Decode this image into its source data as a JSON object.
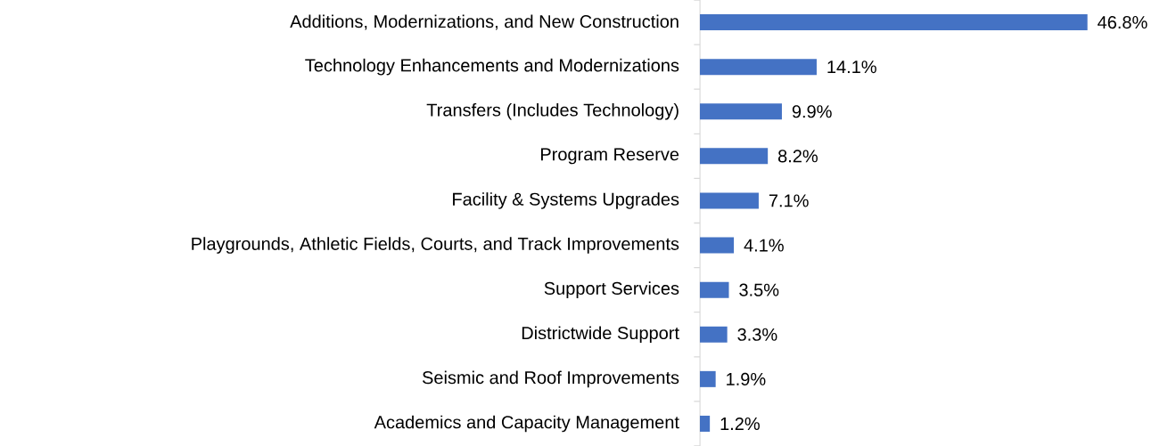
{
  "chart_data": {
    "type": "bar",
    "orientation": "horizontal",
    "color": "#4472c4",
    "tick_labels": "y",
    "categories": [
      "Additions, Modernizations, and New Construction",
      "Technology Enhancements and Modernizations",
      "Transfers (Includes Technology)",
      "Program Reserve",
      "Facility & Systems Upgrades",
      "Playgrounds, Athletic Fields, Courts, and Track Improvements",
      "Support Services",
      "Districtwide Support",
      "Seismic and Roof Improvements",
      "Academics and Capacity Management"
    ],
    "values": [
      46.8,
      14.1,
      9.9,
      8.2,
      7.1,
      4.1,
      3.5,
      3.3,
      1.9,
      1.2
    ],
    "value_labels": [
      "46.8%",
      "14.1%",
      "9.9%",
      "8.2%",
      "7.1%",
      "4.1%",
      "3.5%",
      "3.3%",
      "1.9%",
      "1.2%"
    ]
  }
}
